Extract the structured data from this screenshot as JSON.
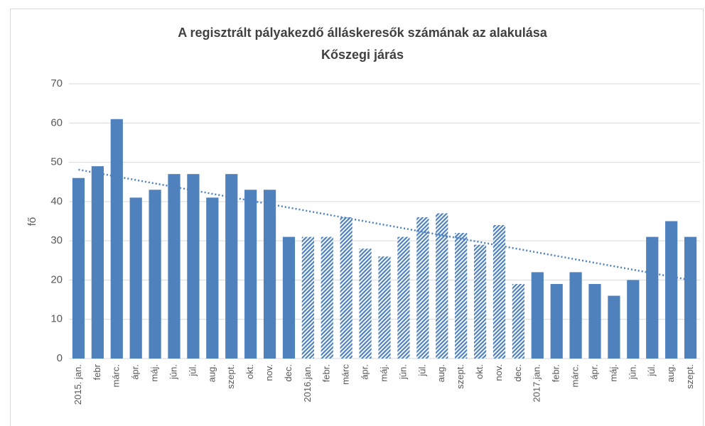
{
  "chart_data": {
    "type": "bar",
    "title": "A regisztrált pályakezdő álláskeresők számának az alakulása",
    "subtitle": "Kőszegi járás",
    "y_label": "fő",
    "categories": [
      "2015. jan.",
      "febr",
      "márc.",
      "ápr.",
      "máj.",
      "jún.",
      "júl.",
      "aug.",
      "szept.",
      "okt.",
      "nov.",
      "dec.",
      "2016.jan.",
      "febr.",
      "márc",
      "ápr.",
      "máj.",
      "jún.",
      "júl.",
      "aug.",
      "szept.",
      "okt.",
      "nov.",
      "dec.",
      "2017.jan.",
      "febr.",
      "márc.",
      "ápr.",
      "máj.",
      "jún.",
      "júl.",
      "aug.",
      "szept."
    ],
    "values": [
      46,
      49,
      61,
      41,
      43,
      47,
      47,
      41,
      47,
      43,
      43,
      31,
      31,
      31,
      36,
      28,
      26,
      31,
      36,
      37,
      32,
      29,
      34,
      19,
      22,
      19,
      22,
      19,
      16,
      20,
      31,
      35,
      31
    ],
    "hatched": [
      false,
      false,
      false,
      false,
      false,
      false,
      false,
      false,
      false,
      false,
      false,
      false,
      true,
      true,
      true,
      true,
      true,
      true,
      true,
      true,
      true,
      true,
      true,
      true,
      false,
      false,
      false,
      false,
      false,
      false,
      false,
      false,
      false
    ],
    "color": "#4f81bd",
    "trendline": "linear",
    "ylim": [
      0,
      70
    ],
    "yticks": [
      0,
      10,
      20,
      30,
      40,
      50,
      60,
      70
    ],
    "grid": true
  }
}
